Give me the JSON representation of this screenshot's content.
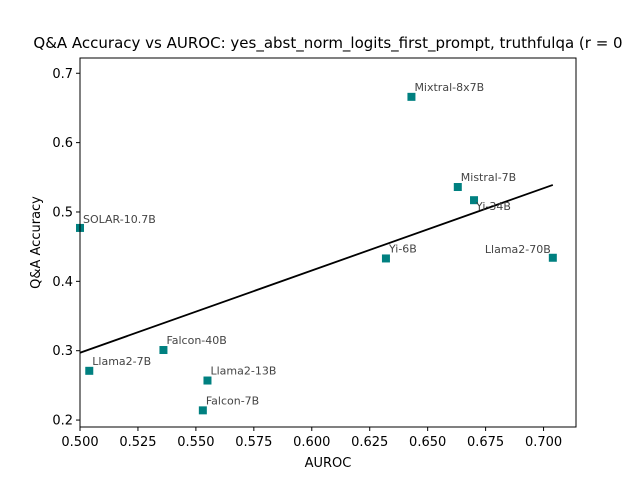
{
  "chart_data": {
    "type": "scatter",
    "title": "Q&A Accuracy vs AUROC: yes_abst_norm_logits_first_prompt, truthfulqa (r = 0",
    "xlabel": "AUROC",
    "ylabel": "Q&A Accuracy",
    "xlim": [
      0.5,
      0.714
    ],
    "ylim": [
      0.19,
      0.722
    ],
    "xticks": [
      "0.500",
      "0.525",
      "0.550",
      "0.575",
      "0.600",
      "0.625",
      "0.650",
      "0.675",
      "0.700"
    ],
    "yticks": [
      "0.2",
      "0.3",
      "0.4",
      "0.5",
      "0.6",
      "0.7"
    ],
    "grid": false,
    "marker_color": "#008080",
    "line_color": "#000000",
    "points": [
      {
        "name": "Mixtral-8x7B",
        "x": 0.643,
        "y": 0.666
      },
      {
        "name": "Mistral-7B",
        "x": 0.663,
        "y": 0.536
      },
      {
        "name": "Yi-34B",
        "x": 0.67,
        "y": 0.517
      },
      {
        "name": "SOLAR-10.7B",
        "x": 0.5,
        "y": 0.477
      },
      {
        "name": "Yi-6B",
        "x": 0.632,
        "y": 0.433
      },
      {
        "name": "Llama2-70B",
        "x": 0.704,
        "y": 0.434
      },
      {
        "name": "Falcon-40B",
        "x": 0.536,
        "y": 0.301
      },
      {
        "name": "Llama2-7B",
        "x": 0.504,
        "y": 0.271
      },
      {
        "name": "Llama2-13B",
        "x": 0.555,
        "y": 0.257
      },
      {
        "name": "Falcon-7B",
        "x": 0.553,
        "y": 0.214
      }
    ],
    "trendline": {
      "x": [
        0.5,
        0.704
      ],
      "y": [
        0.297,
        0.539
      ]
    }
  }
}
